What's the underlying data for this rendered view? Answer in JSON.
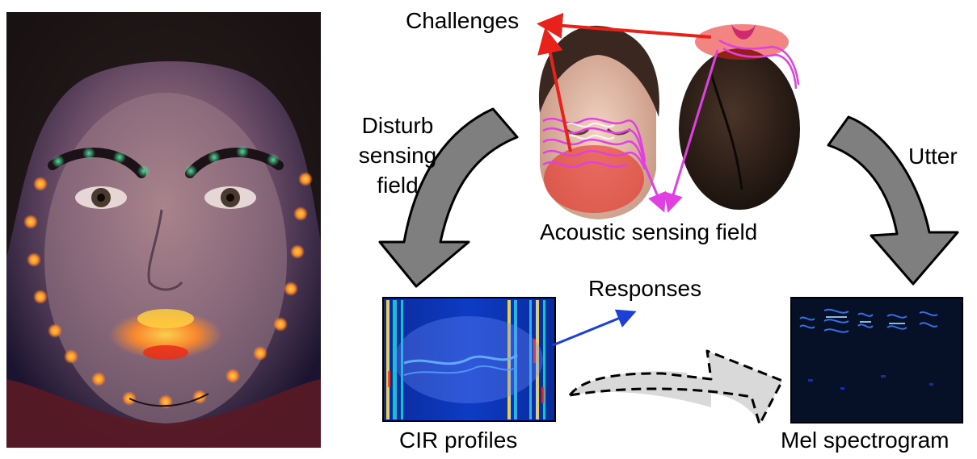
{
  "labels": {
    "challenges": "Challenges",
    "disturb_line1": "Disturb",
    "disturb_line2": "sensing",
    "disturb_line3": "field",
    "utter": "Utter",
    "acoustic_field": "Acoustic sensing field",
    "responses": "Responses",
    "cir_profiles": "CIR profiles",
    "mel_spectrogram": "Mel spectrogram"
  },
  "colors": {
    "challenge_arrow": "#e8211a",
    "response_arrow": "#1c3fd6",
    "sensing_wave": "#e040e0",
    "big_arrow_fill": "#7f7f7f",
    "dashed_arrow_fill": "#d9d9d9",
    "cir_background": "#0b2ea8",
    "mel_background": "#061026"
  }
}
